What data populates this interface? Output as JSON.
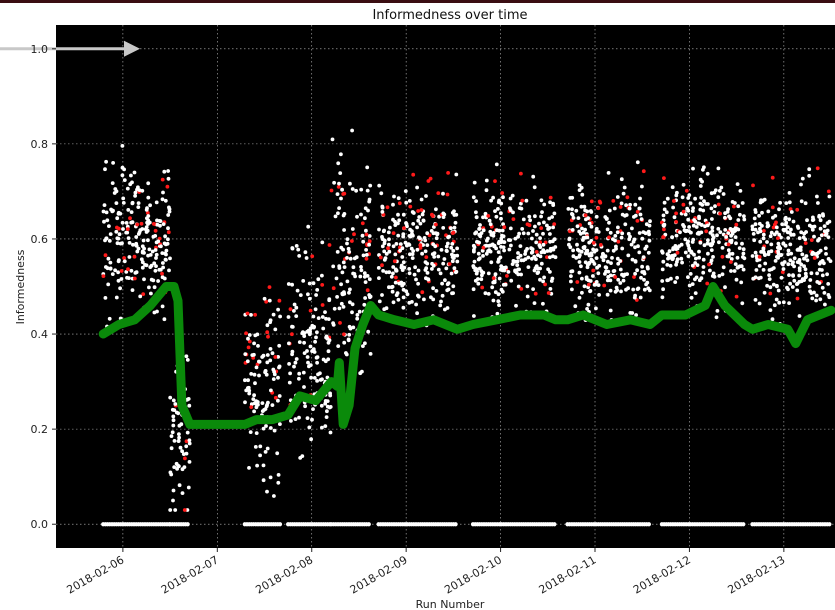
{
  "colors": {
    "top_bar": "#3a0d12",
    "plot_background": "#000000",
    "grid": "#bbbbbb",
    "point_default": "#ffffff",
    "point_highlight": "#ff1a1a",
    "running_line": "#0a8a0a",
    "annotation_arrow": "#c8c8c8"
  },
  "chart_data": {
    "type": "scatter",
    "title": "Informedness over time",
    "xlabel": "Run Number",
    "ylabel": "Informedness",
    "x_type": "date",
    "xlim": [
      "2018-02-05T07:00",
      "2018-02-13T13:00"
    ],
    "ylim": [
      -0.05,
      1.05
    ],
    "grid": true,
    "x_ticks": [
      "2018-02-06",
      "2018-02-07",
      "2018-02-08",
      "2018-02-09",
      "2018-02-10",
      "2018-02-11",
      "2018-02-12",
      "2018-02-13"
    ],
    "y_ticks": [
      "0.0",
      "0.2",
      "0.4",
      "0.6",
      "0.8",
      "1.0"
    ],
    "annotation": {
      "type": "arrow",
      "y": 1.0,
      "direction": "right"
    },
    "clusters": [
      {
        "start": "2018-02-05T19:00",
        "end": "2018-02-06T12:00",
        "center": 0.6,
        "spread": 0.14,
        "zero_band": true
      },
      {
        "start": "2018-02-06T12:00",
        "end": "2018-02-06T17:00",
        "center": 0.2,
        "spread": 0.17,
        "zero_band": true
      },
      {
        "start": "2018-02-07T07:00",
        "end": "2018-02-07T16:00",
        "center": 0.3,
        "spread": 0.18,
        "zero_band": true
      },
      {
        "start": "2018-02-07T18:00",
        "end": "2018-02-08T05:00",
        "center": 0.35,
        "spread": 0.2,
        "zero_band": true
      },
      {
        "start": "2018-02-08T05:00",
        "end": "2018-02-08T15:00",
        "center": 0.55,
        "spread": 0.2,
        "zero_band": true
      },
      {
        "start": "2018-02-08T17:00",
        "end": "2018-02-09T13:00",
        "center": 0.58,
        "spread": 0.12,
        "zero_band": true
      },
      {
        "start": "2018-02-09T17:00",
        "end": "2018-02-10T14:00",
        "center": 0.58,
        "spread": 0.12,
        "zero_band": true
      },
      {
        "start": "2018-02-10T17:00",
        "end": "2018-02-11T14:00",
        "center": 0.58,
        "spread": 0.12,
        "zero_band": true
      },
      {
        "start": "2018-02-11T17:00",
        "end": "2018-02-12T14:00",
        "center": 0.6,
        "spread": 0.12,
        "zero_band": true
      },
      {
        "start": "2018-02-12T16:00",
        "end": "2018-02-13T12:00",
        "center": 0.58,
        "spread": 0.12,
        "zero_band": true
      }
    ],
    "series": [
      {
        "kind": "line",
        "points": [
          [
            "2018-02-05T19:00",
            0.4
          ],
          [
            "2018-02-05T23:00",
            0.42
          ],
          [
            "2018-02-06T03:00",
            0.43
          ],
          [
            "2018-02-06T07:00",
            0.46
          ],
          [
            "2018-02-06T11:00",
            0.5
          ],
          [
            "2018-02-06T13:00",
            0.5
          ],
          [
            "2018-02-06T14:00",
            0.47
          ],
          [
            "2018-02-06T15:00",
            0.25
          ],
          [
            "2018-02-06T17:00",
            0.21
          ],
          [
            "2018-02-07T07:00",
            0.21
          ],
          [
            "2018-02-07T10:00",
            0.22
          ],
          [
            "2018-02-07T14:00",
            0.22
          ],
          [
            "2018-02-07T18:00",
            0.23
          ],
          [
            "2018-02-07T21:00",
            0.27
          ],
          [
            "2018-02-08T01:00",
            0.26
          ],
          [
            "2018-02-08T05:00",
            0.3
          ],
          [
            "2018-02-08T06:30",
            0.29
          ],
          [
            "2018-02-08T07:00",
            0.34
          ],
          [
            "2018-02-08T08:00",
            0.21
          ],
          [
            "2018-02-08T09:30",
            0.25
          ],
          [
            "2018-02-08T11:00",
            0.37
          ],
          [
            "2018-02-08T13:00",
            0.42
          ],
          [
            "2018-02-08T15:00",
            0.46
          ],
          [
            "2018-02-08T17:00",
            0.44
          ],
          [
            "2018-02-08T21:00",
            0.43
          ],
          [
            "2018-02-09T02:00",
            0.42
          ],
          [
            "2018-02-09T07:00",
            0.43
          ],
          [
            "2018-02-09T13:00",
            0.41
          ],
          [
            "2018-02-09T17:00",
            0.42
          ],
          [
            "2018-02-09T23:00",
            0.43
          ],
          [
            "2018-02-10T05:00",
            0.44
          ],
          [
            "2018-02-10T11:00",
            0.44
          ],
          [
            "2018-02-10T14:00",
            0.43
          ],
          [
            "2018-02-10T17:00",
            0.43
          ],
          [
            "2018-02-10T21:00",
            0.44
          ],
          [
            "2018-02-11T03:00",
            0.42
          ],
          [
            "2018-02-11T09:00",
            0.43
          ],
          [
            "2018-02-11T14:00",
            0.42
          ],
          [
            "2018-02-11T17:00",
            0.44
          ],
          [
            "2018-02-11T23:00",
            0.44
          ],
          [
            "2018-02-12T04:00",
            0.46
          ],
          [
            "2018-02-12T06:00",
            0.5
          ],
          [
            "2018-02-12T09:00",
            0.46
          ],
          [
            "2018-02-12T14:00",
            0.42
          ],
          [
            "2018-02-12T16:00",
            0.41
          ],
          [
            "2018-02-12T20:00",
            0.42
          ],
          [
            "2018-02-13T01:00",
            0.41
          ],
          [
            "2018-02-13T03:00",
            0.38
          ],
          [
            "2018-02-13T06:00",
            0.43
          ],
          [
            "2018-02-13T12:00",
            0.45
          ]
        ]
      }
    ]
  }
}
